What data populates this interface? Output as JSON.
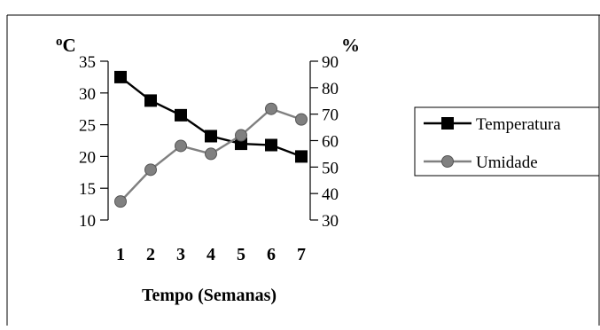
{
  "chart_data": {
    "type": "line",
    "categories": [
      "1",
      "2",
      "3",
      "4",
      "5",
      "6",
      "7"
    ],
    "xlabel": "Tempo (Semanas)",
    "left_axis": {
      "unit_label": "oC",
      "unit_superscript": "o",
      "unit_main": "C",
      "ylim": [
        10,
        35
      ],
      "ticks": [
        10,
        15,
        20,
        25,
        30,
        35
      ]
    },
    "right_axis": {
      "unit_label": "%",
      "ylim": [
        30,
        90
      ],
      "ticks": [
        30,
        40,
        50,
        60,
        70,
        80,
        90
      ]
    },
    "series": [
      {
        "name": "Temperatura",
        "axis": "left",
        "color": "#000000",
        "marker": "square",
        "values": [
          32.5,
          28.8,
          26.5,
          23.2,
          22.0,
          21.8,
          20.0
        ]
      },
      {
        "name": "Umidade",
        "axis": "right",
        "color": "#808080",
        "marker": "circle",
        "values": [
          37,
          49,
          58,
          55,
          62,
          72,
          68
        ]
      }
    ],
    "legend_position": "right",
    "grid": false
  }
}
